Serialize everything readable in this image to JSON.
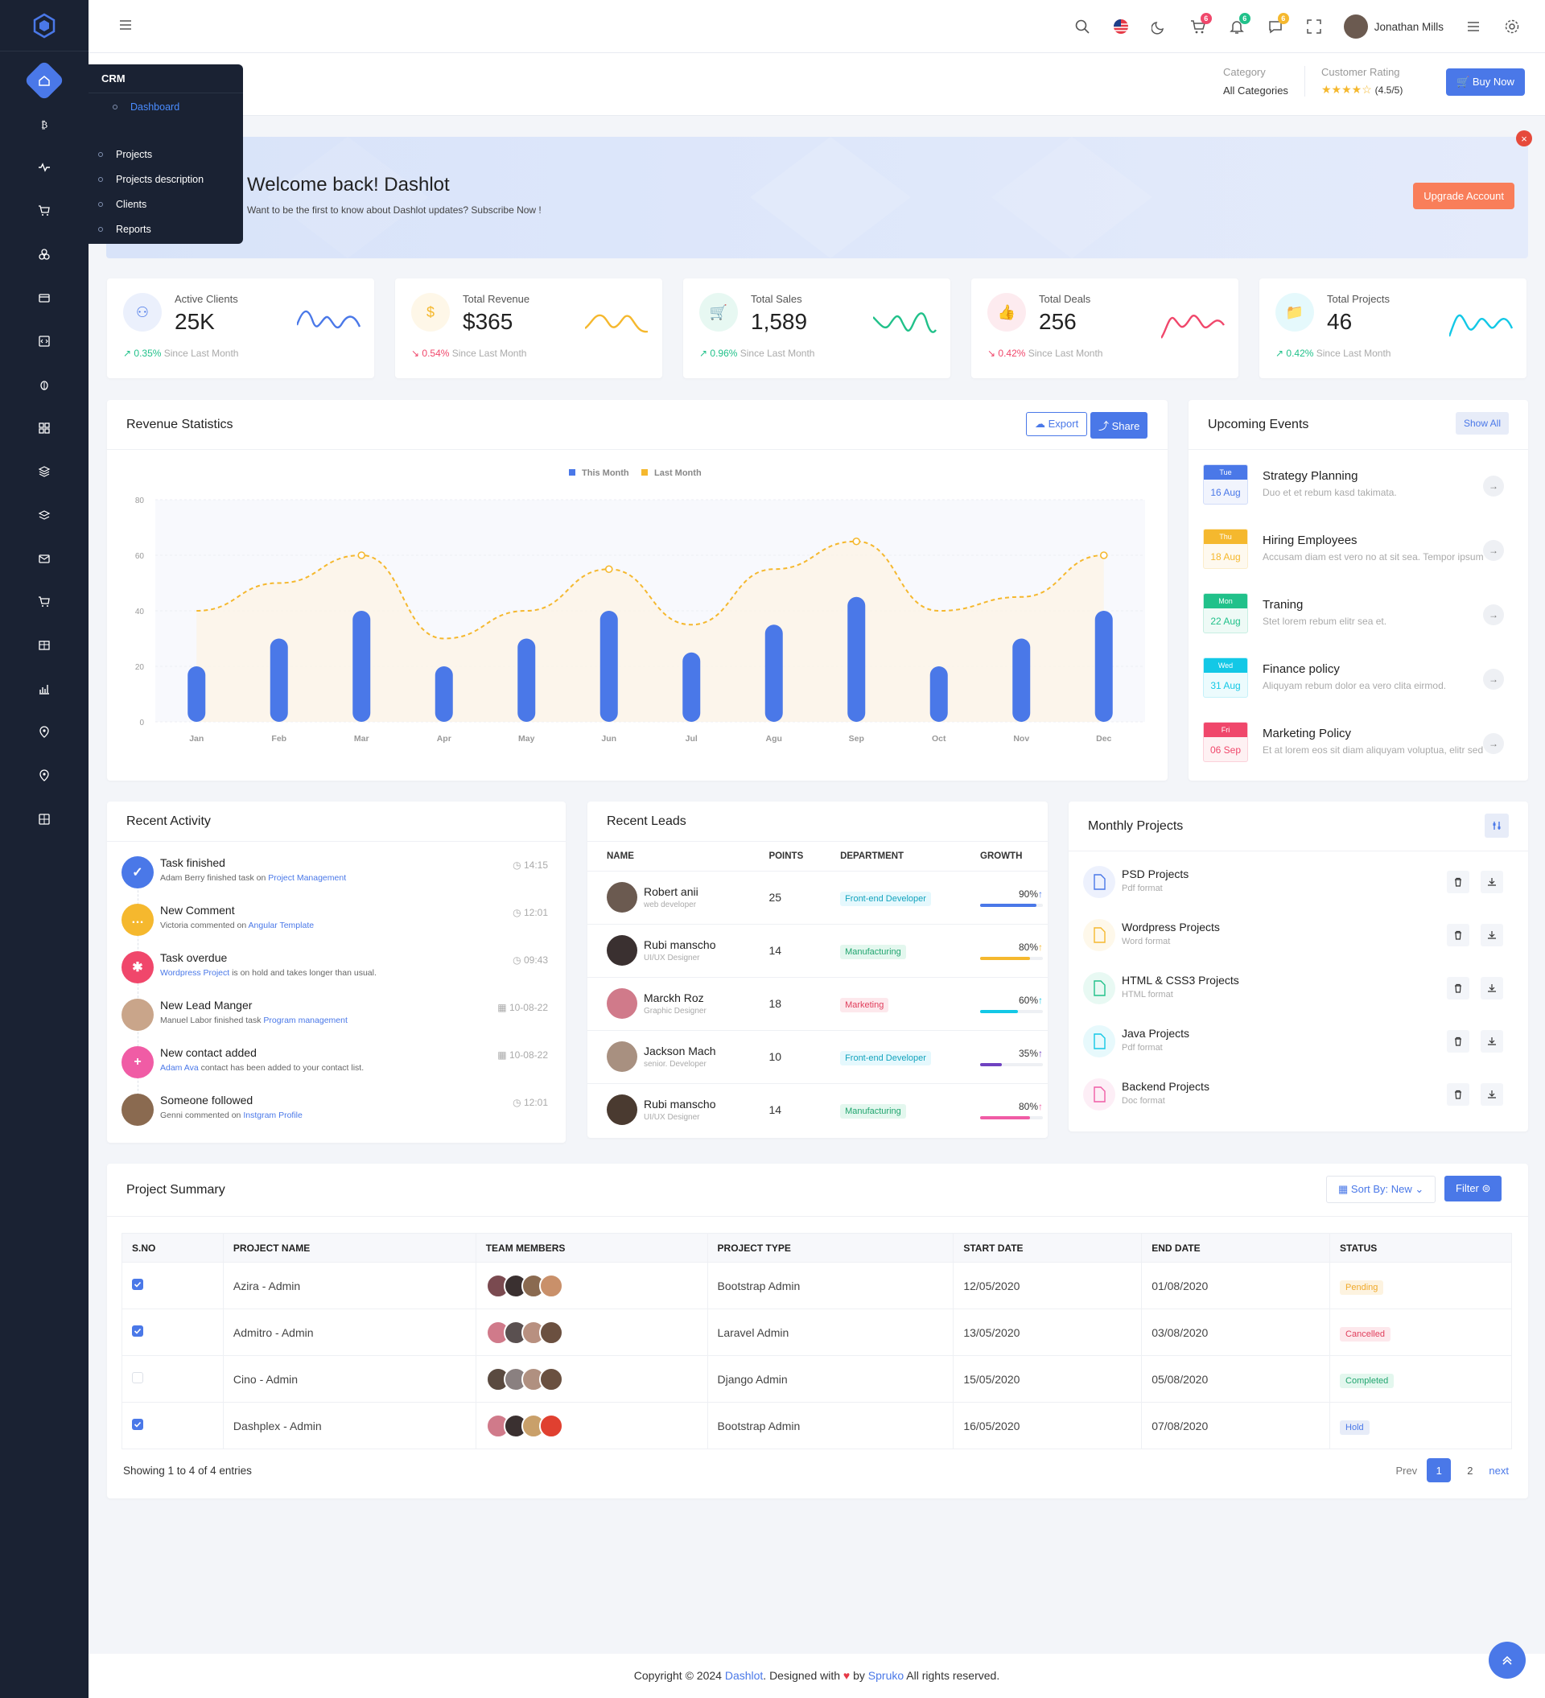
{
  "sidebar": {
    "flyout": {
      "title": "CRM",
      "items": [
        "Dashboard",
        "Projects",
        "Projects description",
        "Clients",
        "Reports"
      ]
    }
  },
  "topbar": {
    "user_name": "Jonathan Mills",
    "cart_badge": "6",
    "bell_badge": "6",
    "msg_badge": "6"
  },
  "subheader": {
    "category_label": "Category",
    "category_value": "All Categories",
    "rating_label": "Customer Rating",
    "rating_value": "(4.5/5)",
    "rating": 4.5,
    "buy_button": "Buy Now"
  },
  "welcome": {
    "title": "Welcome back! Dashlot",
    "subtitle": "Want to be the first to know about Dashlot updates? Subscribe Now !",
    "upgrade_button": "Upgrade Account",
    "close": "×"
  },
  "stats": [
    {
      "title": "Active Clients",
      "value": "25K",
      "change": "0.35%",
      "since": "Since Last Month",
      "color": "#4a78e8"
    },
    {
      "title": "Total Revenue",
      "value": "$365",
      "change": "0.54%",
      "since": "Since Last Month",
      "color": "#f5b82e"
    },
    {
      "title": "Total Sales",
      "value": "1,589",
      "change": "0.96%",
      "since": "Since Last Month",
      "color": "#21c18a"
    },
    {
      "title": "Total Deals",
      "value": "256",
      "change": "0.42%",
      "since": "Since Last Month",
      "color": "#f0476b"
    },
    {
      "title": "Total Projects",
      "value": "46",
      "change": "0.42%",
      "since": "Since Last Month",
      "color": "#13c8e6"
    }
  ],
  "revenue": {
    "title": "Revenue Statistics",
    "export": "Export",
    "share": "Share"
  },
  "chart_data": {
    "type": "bar",
    "categories": [
      "Jan",
      "Feb",
      "Mar",
      "Apr",
      "May",
      "Jun",
      "Jul",
      "Agu",
      "Sep",
      "Oct",
      "Nov",
      "Dec"
    ],
    "series": [
      {
        "name": "This Month",
        "type": "bar",
        "values": [
          20,
          30,
          40,
          20,
          30,
          40,
          25,
          35,
          45,
          20,
          30,
          40
        ]
      },
      {
        "name": "Last Month",
        "type": "line",
        "values": [
          40,
          50,
          60,
          30,
          40,
          55,
          35,
          55,
          65,
          40,
          45,
          60
        ]
      }
    ],
    "ylim": [
      0,
      80
    ],
    "yticks": [
      0,
      20,
      40,
      60,
      80
    ],
    "colors": {
      "This Month": "#4a78e8",
      "Last Month": "#f5b82e"
    }
  },
  "events": {
    "title": "Upcoming Events",
    "show_all": "Show All",
    "items": [
      {
        "day": "Tue",
        "date": "16 Aug",
        "title": "Strategy Planning",
        "desc": "Duo et et rebum kasd takimata.",
        "color": "#4a78e8"
      },
      {
        "day": "Thu",
        "date": "18 Aug",
        "title": "Hiring Employees",
        "desc": "Accusam diam est vero no at sit sea. Tempor ipsum",
        "color": "#f5b82e"
      },
      {
        "day": "Mon",
        "date": "22 Aug",
        "title": "Traning",
        "desc": "Stet lorem rebum elitr sea et.",
        "color": "#21c18a"
      },
      {
        "day": "Wed",
        "date": "31 Aug",
        "title": "Finance policy",
        "desc": "Aliquyam rebum dolor ea vero clita eirmod.",
        "color": "#13c8e6"
      },
      {
        "day": "Fri",
        "date": "06 Sep",
        "title": "Marketing Policy",
        "desc": "Et at lorem eos sit diam aliquyam voluptua, elitr sed",
        "color": "#f0476b"
      }
    ]
  },
  "activity": {
    "title": "Recent Activity",
    "items": [
      {
        "title": "Task finished",
        "pre": "Adam Berry finished task on ",
        "link": "Project Management",
        "post": "",
        "time": "14:15"
      },
      {
        "title": "New Comment",
        "pre": "Victoria commented on ",
        "link": "Angular Template",
        "post": "",
        "time": "12:01"
      },
      {
        "title": "Task overdue",
        "pre": "",
        "link": "Wordpress Project",
        "post": " is on hold and takes longer than usual.",
        "time": "09:43"
      },
      {
        "title": "New Lead Manger",
        "pre": "Manuel Labor finished task ",
        "link": "Program management",
        "post": "",
        "time": "10-08-22"
      },
      {
        "title": "New contact added",
        "pre": "",
        "link": "Adam Ava",
        "post": " contact has been added to your contact list.",
        "time": "10-08-22"
      },
      {
        "title": "Someone followed",
        "pre": "Genni commented on ",
        "link": "Instgram Profile",
        "post": "",
        "time": "12:01"
      }
    ]
  },
  "leads": {
    "title": "Recent Leads",
    "headers": [
      "NAME",
      "POINTS",
      "DEPARTMENT",
      "GROWTH"
    ],
    "rows": [
      {
        "name": "Robert anii",
        "role": "web developer",
        "points": "25",
        "dept": "Front-end Developer",
        "growth": "90%",
        "g": 0.9
      },
      {
        "name": "Rubi manscho",
        "role": "UI/UX Designer",
        "points": "14",
        "dept": "Manufacturing",
        "growth": "80%",
        "g": 0.8
      },
      {
        "name": "Marckh Roz",
        "role": "Graphic Designer",
        "points": "18",
        "dept": "Marketing",
        "growth": "60%",
        "g": 0.6
      },
      {
        "name": "Jackson Mach",
        "role": "senior. Developer",
        "points": "10",
        "dept": "Front-end Developer",
        "growth": "35%",
        "g": 0.35
      },
      {
        "name": "Rubi manscho",
        "role": "UI/UX Designer",
        "points": "14",
        "dept": "Manufacturing",
        "growth": "80%",
        "g": 0.8
      }
    ]
  },
  "monthly": {
    "title": "Monthly Projects",
    "items": [
      {
        "title": "PSD Projects",
        "sub": "Pdf format"
      },
      {
        "title": "Wordpress Projects",
        "sub": "Word format"
      },
      {
        "title": "HTML & CSS3 Projects",
        "sub": "HTML format"
      },
      {
        "title": "Java Projects",
        "sub": "Pdf format"
      },
      {
        "title": "Backend Projects",
        "sub": "Doc format"
      }
    ]
  },
  "summary": {
    "title": "Project Summary",
    "sort": "Sort By: New",
    "filter": "Filter",
    "headers": [
      "S.NO",
      "PROJECT NAME",
      "TEAM MEMBERS",
      "PROJECT TYPE",
      "START DATE",
      "END DATE",
      "STATUS"
    ],
    "rows": [
      {
        "checked": true,
        "name": "Azira - Admin",
        "type": "Bootstrap Admin",
        "start": "12/05/2020",
        "end": "01/08/2020",
        "status": "Pending"
      },
      {
        "checked": true,
        "name": "Admitro - Admin",
        "type": "Laravel Admin",
        "start": "13/05/2020",
        "end": "03/08/2020",
        "status": "Cancelled"
      },
      {
        "checked": false,
        "name": "Cino - Admin",
        "type": "Django Admin",
        "start": "15/05/2020",
        "end": "05/08/2020",
        "status": "Completed"
      },
      {
        "checked": true,
        "name": "Dashplex - Admin",
        "type": "Bootstrap Admin",
        "start": "16/05/2020",
        "end": "07/08/2020",
        "status": "Hold"
      }
    ],
    "showing": "Showing 1 to 4 of 4 entries",
    "prev": "Prev",
    "pages": [
      "1",
      "2"
    ],
    "next": "next"
  },
  "footer": {
    "pre": "Copyright © 2024 ",
    "brand": "Dashlot",
    "mid": ". Designed with ",
    "by": " by ",
    "company": "Spruko",
    "post": " All rights reserved."
  }
}
